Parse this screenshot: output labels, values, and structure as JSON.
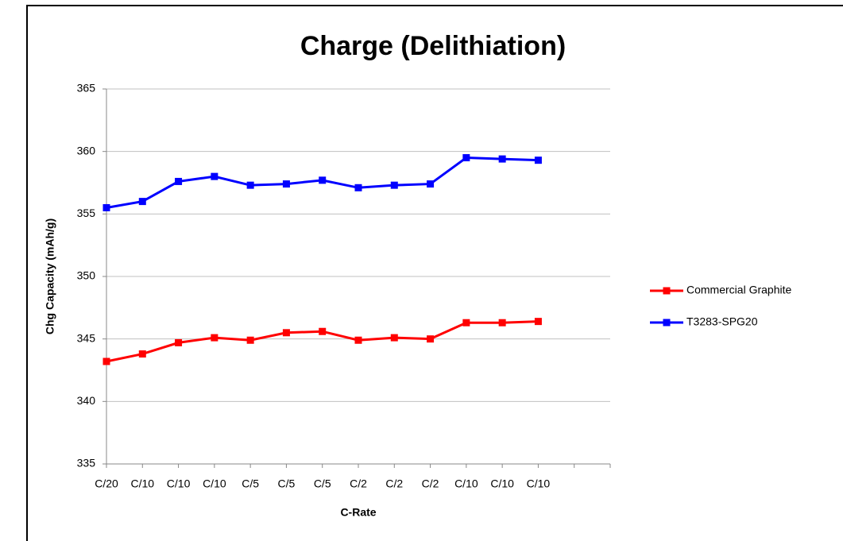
{
  "chart_data": {
    "type": "line",
    "title": "Charge (Delithiation)",
    "x_label": "C-Rate",
    "y_label": "Chg Capacity (mAh/g)",
    "categories": [
      "C/20",
      "C/10",
      "C/10",
      "C/10",
      "C/5",
      "C/5",
      "C/5",
      "C/2",
      "C/2",
      "C/2",
      "C/10",
      "C/10",
      "C/10",
      null
    ],
    "series": [
      {
        "name": "Commercial Graphite",
        "color": "#ff0000",
        "values": [
          343.2,
          343.8,
          344.7,
          345.1,
          344.9,
          345.5,
          345.6,
          344.9,
          345.1,
          345.0,
          346.3,
          346.3,
          346.4,
          null
        ]
      },
      {
        "name": "T3283-SPG20",
        "color": "#0000ff",
        "values": [
          355.5,
          356.0,
          357.6,
          358.0,
          357.3,
          357.4,
          357.7,
          357.1,
          357.3,
          357.4,
          359.5,
          359.4,
          359.3,
          null
        ]
      }
    ],
    "ylim": [
      335,
      365
    ],
    "yticks": [
      335,
      340,
      345,
      350,
      355,
      360,
      365
    ],
    "grid": true,
    "legend": "right"
  }
}
